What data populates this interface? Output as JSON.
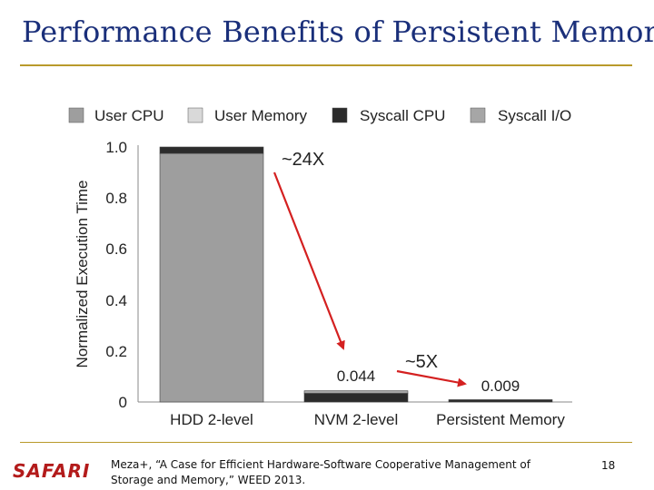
{
  "slide": {
    "title": "Performance Benefits of Persistent Memory",
    "brand": "SAFARI",
    "citation_line1": "Meza+, “A Case for Efficient Hardware-Software Cooperative Management of",
    "citation_line2": "Storage and Memory,” WEED 2013.",
    "page_number": "18"
  },
  "chart_data": {
    "type": "bar",
    "stacked": true,
    "categories": [
      "HDD 2-level",
      "NVM 2-level",
      "Persistent Memory"
    ],
    "series": [
      {
        "name": "User CPU",
        "color": "#9e9e9e",
        "values": [
          0.975,
          0.0,
          0.0
        ]
      },
      {
        "name": "User Memory",
        "color": "#d9d9d9",
        "values": [
          0.0,
          0.0,
          0.0
        ]
      },
      {
        "name": "Syscall CPU",
        "color": "#2b2b2b",
        "values": [
          0.025,
          0.034,
          0.009
        ]
      },
      {
        "name": "Syscall I/O",
        "color": "#a6a6a6",
        "values": [
          0.0,
          0.01,
          0.0
        ]
      }
    ],
    "ylabel": "Normalized Execution Time",
    "ylim": [
      0,
      1.0
    ],
    "yticks": [
      0,
      0.2,
      0.4,
      0.6,
      0.8,
      1.0
    ],
    "ytick_labels": [
      "0",
      "0.2",
      "0.4",
      "0.6",
      "0.8",
      "1.0"
    ],
    "data_labels": [
      "",
      "0.044",
      "0.009"
    ],
    "annotations": [
      "~24X",
      "~5X"
    ],
    "annotation_color": "#d42020",
    "legend_position": "top"
  }
}
